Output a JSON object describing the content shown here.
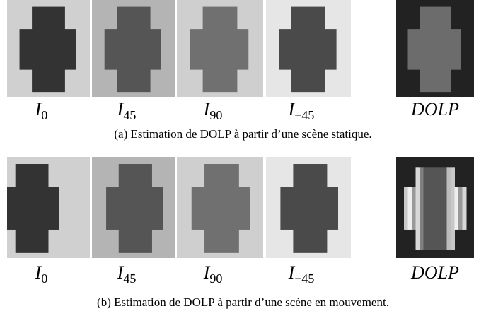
{
  "rows": [
    {
      "labels": [
        {
          "base": "I",
          "sub": "0"
        },
        {
          "base": "I",
          "sub": "45"
        },
        {
          "base": "I",
          "sub": "90"
        },
        {
          "base": "I",
          "sub": "−45"
        },
        {
          "base": "DOLP"
        }
      ],
      "caption": "(a) Estimation de DOLP à partir d’une scène statique."
    },
    {
      "labels": [
        {
          "base": "I",
          "sub": "0"
        },
        {
          "base": "I",
          "sub": "45"
        },
        {
          "base": "I",
          "sub": "90"
        },
        {
          "base": "I",
          "sub": "−45"
        },
        {
          "base": "DOLP"
        }
      ],
      "caption": "(b) Estimation de DOLP à partir d’une scène en mouvement."
    }
  ]
}
